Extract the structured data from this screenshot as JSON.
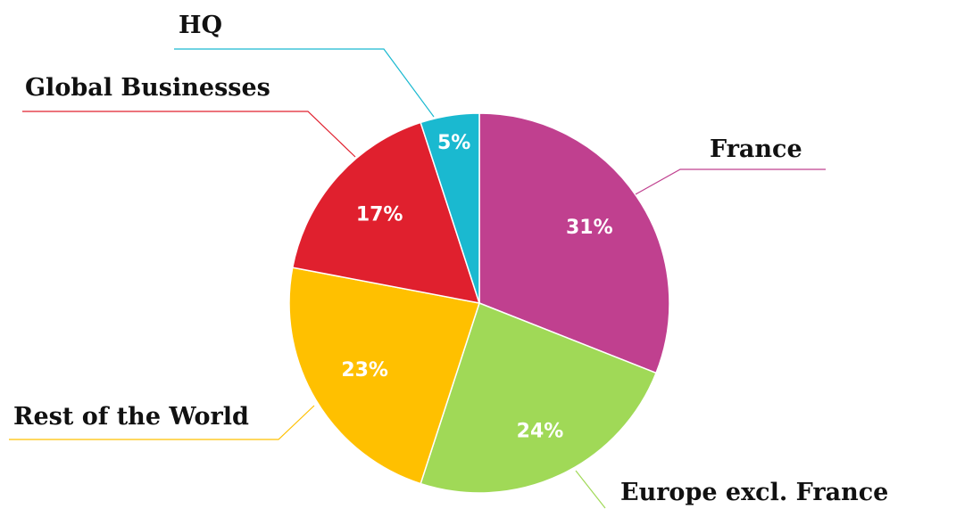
{
  "chart_data": {
    "type": "pie",
    "categories": [
      "France",
      "Europe excl. France",
      "Rest of the World",
      "Global Businesses",
      "HQ"
    ],
    "values": [
      31,
      24,
      23,
      17,
      5
    ],
    "value_labels": [
      "31%",
      "24%",
      "23%",
      "17%",
      "5%"
    ],
    "colors": [
      "#c0408f",
      "#a0d957",
      "#ffc000",
      "#e0202e",
      "#1ab9d0"
    ]
  }
}
